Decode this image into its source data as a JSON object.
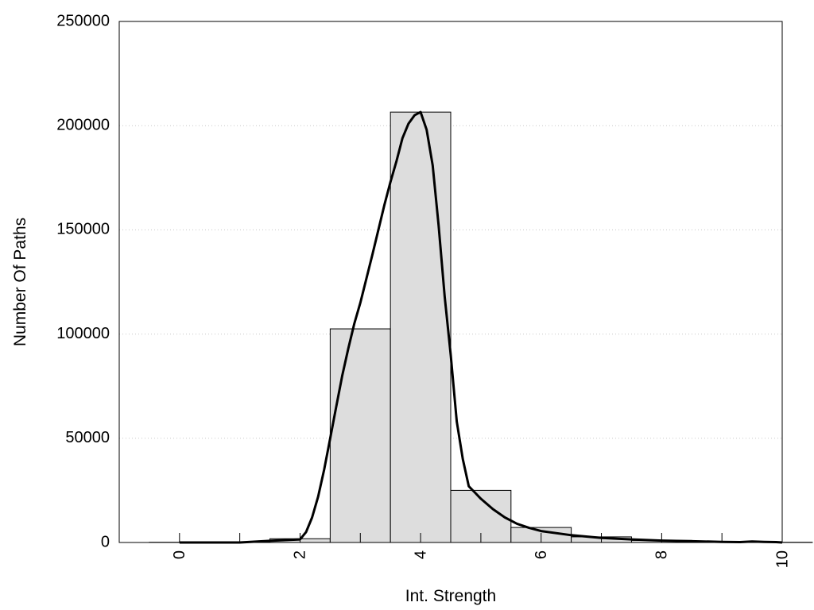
{
  "chart_data": {
    "type": "bar",
    "title": "",
    "xlabel": "Int. Strength",
    "ylabel": "Number Of Paths",
    "xlim": [
      -1,
      10
    ],
    "ylim": [
      0,
      250000
    ],
    "xticks": [
      0,
      2,
      4,
      6,
      8,
      10
    ],
    "xtick_labels": [
      "0",
      "2",
      "4",
      "6",
      "8",
      "10"
    ],
    "yticks": [
      0,
      50000,
      100000,
      150000,
      200000,
      250000
    ],
    "ytick_labels": [
      "0",
      "50000",
      "100000",
      "150000",
      "200000",
      "250000"
    ],
    "grid": "horizontal dotted",
    "bar_color": "#dddddd",
    "line_color": "#000000",
    "categories": [
      0,
      1,
      2,
      3,
      4,
      5,
      6,
      7,
      8,
      9,
      10
    ],
    "values": [
      100,
      200,
      1800,
      102500,
      206500,
      25000,
      7200,
      2700,
      1000,
      300,
      100
    ],
    "series": [
      {
        "type": "line",
        "x": [
          0,
          0.5,
          1,
          1.5,
          2,
          2.1,
          2.2,
          2.3,
          2.4,
          2.5,
          2.6,
          2.7,
          2.8,
          2.9,
          3,
          3.2,
          3.4,
          3.5,
          3.6,
          3.7,
          3.8,
          3.9,
          4,
          4.1,
          4.2,
          4.3,
          4.4,
          4.5,
          4.6,
          4.7,
          4.8,
          4.9,
          5,
          5.2,
          5.4,
          5.6,
          5.8,
          6,
          6.5,
          7,
          7.5,
          8,
          8.5,
          9,
          9.3,
          9.5,
          9.7,
          9.9,
          10
        ],
        "y": [
          0,
          0,
          0,
          800,
          1500,
          5000,
          12000,
          22000,
          35000,
          50000,
          65000,
          80000,
          93000,
          105000,
          115000,
          138000,
          162000,
          173000,
          183000,
          194000,
          201000,
          205000,
          206500,
          198000,
          181000,
          152000,
          118000,
          90000,
          58000,
          40000,
          27000,
          24000,
          21000,
          16000,
          12000,
          9000,
          7000,
          5500,
          3500,
          2200,
          1500,
          900,
          600,
          300,
          200,
          500,
          300,
          200,
          0
        ]
      }
    ]
  }
}
